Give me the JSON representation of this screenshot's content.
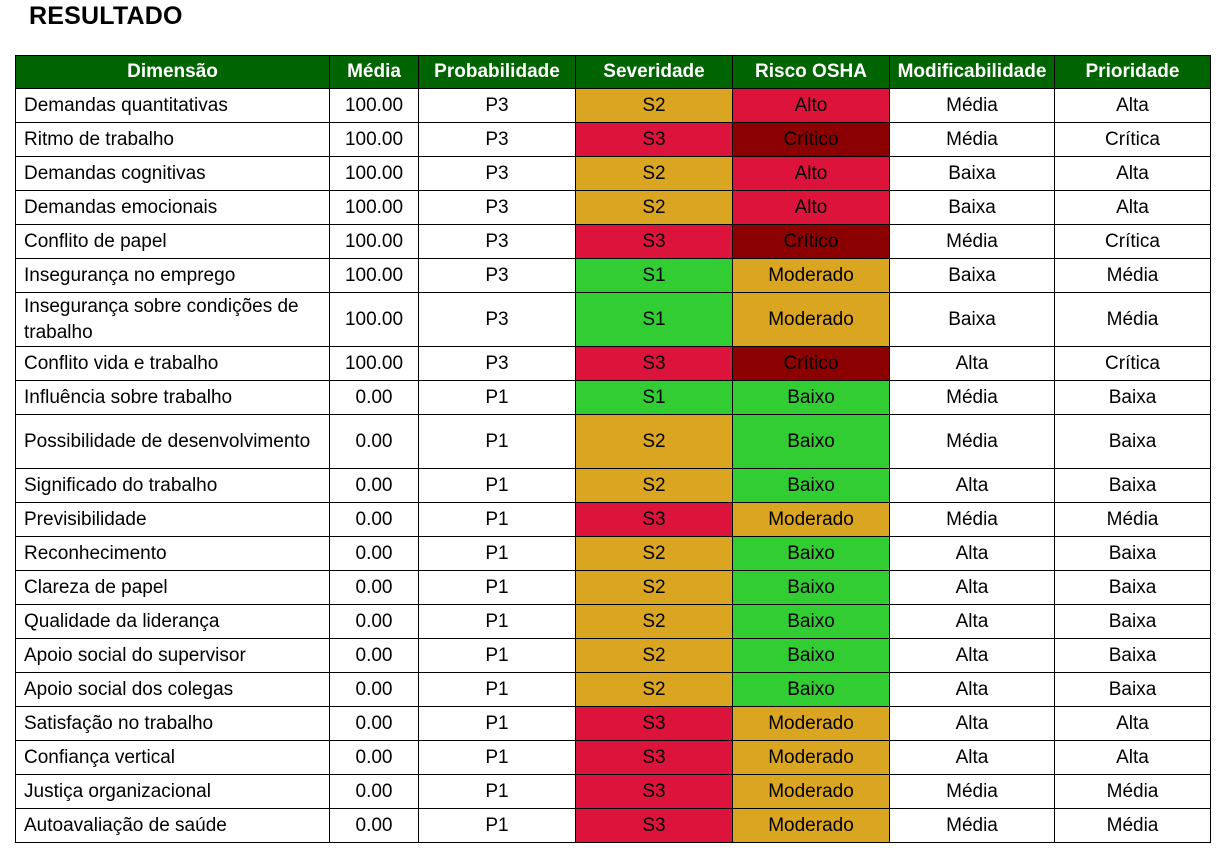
{
  "page": {
    "title": "RESULTADO"
  },
  "colors": {
    "header_bg": "#006400",
    "P3": "#C8102E",
    "S1": "#32CD32",
    "S2": "#DAA520",
    "S3": "#DC143C",
    "Baixo": "#32CD32",
    "Moderado": "#DAA520",
    "Alto": "#DC143C",
    "Critico": "#8B0000"
  },
  "table": {
    "headers": [
      "Dimensão",
      "Média",
      "Probabilidade",
      "Severidade",
      "Risco OSHA",
      "Modificabilidade",
      "Prioridade"
    ],
    "rows": [
      [
        "Demandas quantitativas",
        "100.00",
        "P3",
        "S2",
        "Alto",
        "Média",
        "Alta"
      ],
      [
        "Ritmo de trabalho",
        "100.00",
        "P3",
        "S3",
        "Crítico",
        "Média",
        "Crítica"
      ],
      [
        "Demandas cognitivas",
        "100.00",
        "P3",
        "S2",
        "Alto",
        "Baixa",
        "Alta"
      ],
      [
        "Demandas emocionais",
        "100.00",
        "P3",
        "S2",
        "Alto",
        "Baixa",
        "Alta"
      ],
      [
        "Conflito de papel",
        "100.00",
        "P3",
        "S3",
        "Crítico",
        "Média",
        "Crítica"
      ],
      [
        "Insegurança no emprego",
        "100.00",
        "P3",
        "S1",
        "Moderado",
        "Baixa",
        "Média"
      ],
      [
        "Insegurança sobre condições de trabalho",
        "100.00",
        "P3",
        "S1",
        "Moderado",
        "Baixa",
        "Média"
      ],
      [
        "Conflito vida e trabalho",
        "100.00",
        "P3",
        "S3",
        "Crítico",
        "Alta",
        "Crítica"
      ],
      [
        "Influência sobre trabalho",
        "0.00",
        "P1",
        "S1",
        "Baixo",
        "Média",
        "Baixa"
      ],
      [
        "Possibilidade de desenvolvimento",
        "0.00",
        "P1",
        "S2",
        "Baixo",
        "Média",
        "Baixa"
      ],
      [
        "Significado do trabalho",
        "0.00",
        "P1",
        "S2",
        "Baixo",
        "Alta",
        "Baixa"
      ],
      [
        "Previsibilidade",
        "0.00",
        "P1",
        "S3",
        "Moderado",
        "Média",
        "Média"
      ],
      [
        "Reconhecimento",
        "0.00",
        "P1",
        "S2",
        "Baixo",
        "Alta",
        "Baixa"
      ],
      [
        "Clareza de papel",
        "0.00",
        "P1",
        "S2",
        "Baixo",
        "Alta",
        "Baixa"
      ],
      [
        "Qualidade da liderança",
        "0.00",
        "P1",
        "S2",
        "Baixo",
        "Alta",
        "Baixa"
      ],
      [
        "Apoio social do supervisor",
        "0.00",
        "P1",
        "S2",
        "Baixo",
        "Alta",
        "Baixa"
      ],
      [
        "Apoio social dos colegas",
        "0.00",
        "P1",
        "S2",
        "Baixo",
        "Alta",
        "Baixa"
      ],
      [
        "Satisfação no trabalho",
        "0.00",
        "P1",
        "S3",
        "Moderado",
        "Alta",
        "Alta"
      ],
      [
        "Confiança vertical",
        "0.00",
        "P1",
        "S3",
        "Moderado",
        "Alta",
        "Alta"
      ],
      [
        "Justiça organizacional",
        "0.00",
        "P1",
        "S3",
        "Moderado",
        "Média",
        "Média"
      ],
      [
        "Autoavaliação de saúde",
        "0.00",
        "P1",
        "S3",
        "Moderado",
        "Média",
        "Média"
      ]
    ]
  }
}
